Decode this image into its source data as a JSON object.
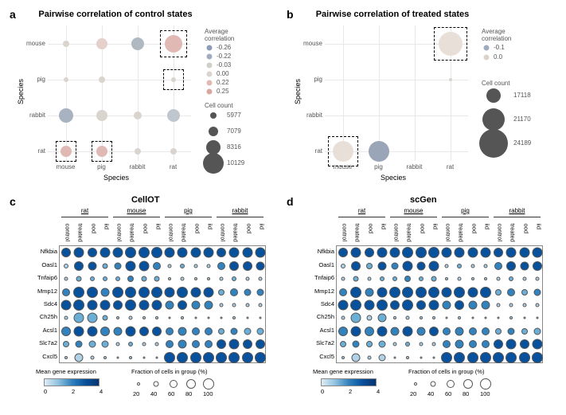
{
  "panels": {
    "a": {
      "label": "a",
      "title": "Pairwise correlation of control states"
    },
    "b": {
      "label": "b",
      "title": "Pairwise correlation of treated states"
    },
    "c": {
      "label": "c",
      "title": "CellOT"
    },
    "d": {
      "label": "d",
      "title": "scGen"
    }
  },
  "bubble_axes": {
    "xlabel": "Species",
    "ylabel": "Species",
    "ticks": [
      "mouse",
      "pig",
      "rabbit",
      "rat"
    ]
  },
  "bubble_a": {
    "colors": {
      "neg": "#8d9db6",
      "neutral": "#d9d4cd",
      "pos": "#d8a7a2",
      "pos2": "#e0b8b4"
    },
    "legend_corr_title": "Average\ncorrelation",
    "legend_corr_values": [
      "-0.26",
      "-0.22",
      "-0.03",
      "0.00",
      "0.22",
      "0.25"
    ],
    "legend_size_title": "Cell count",
    "legend_size_values": [
      "5977",
      "7079",
      "8316",
      "10129"
    ],
    "points": [
      {
        "x": 0,
        "y": 0,
        "size": 8,
        "color": "#d9d4cd"
      },
      {
        "x": 1,
        "y": 0,
        "size": 14,
        "color": "#e6d0cc"
      },
      {
        "x": 2,
        "y": 0,
        "size": 16,
        "color": "#b0b8c2"
      },
      {
        "x": 3,
        "y": 0,
        "size": 22,
        "color": "#e0b8b4",
        "box": true
      },
      {
        "x": 0,
        "y": 1,
        "size": 6,
        "color": "#d9d4cd"
      },
      {
        "x": 1,
        "y": 1,
        "size": 8,
        "color": "#d9d4cd"
      },
      {
        "x": 3,
        "y": 1,
        "size": 6,
        "color": "#d9d4cd",
        "box": true
      },
      {
        "x": 0,
        "y": 2,
        "size": 18,
        "color": "#a8b2c0"
      },
      {
        "x": 1,
        "y": 2,
        "size": 14,
        "color": "#d9d4cd"
      },
      {
        "x": 2,
        "y": 2,
        "size": 10,
        "color": "#d9d4cd"
      },
      {
        "x": 3,
        "y": 2,
        "size": 16,
        "color": "#c0c6ce"
      },
      {
        "x": 0,
        "y": 3,
        "size": 14,
        "color": "#e0b8b4",
        "box": true
      },
      {
        "x": 1,
        "y": 3,
        "size": 14,
        "color": "#e0b8b4",
        "box": true
      },
      {
        "x": 2,
        "y": 3,
        "size": 8,
        "color": "#d9d4cd"
      },
      {
        "x": 3,
        "y": 3,
        "size": 8,
        "color": "#d9d4cd"
      }
    ]
  },
  "bubble_b": {
    "legend_corr_title": "Average\ncorrelation",
    "legend_corr_values": [
      "-0.1",
      "0.0"
    ],
    "legend_size_title": "Cell count",
    "legend_size_values": [
      "17118",
      "21170",
      "24189"
    ],
    "points": [
      {
        "x": 3,
        "y": 0,
        "size": 30,
        "color": "#e8e0d8",
        "box": true
      },
      {
        "x": 3,
        "y": 1,
        "size": 4,
        "color": "#d9d4cd"
      },
      {
        "x": 0,
        "y": 3,
        "size": 26,
        "color": "#e8e0d8",
        "box": true
      },
      {
        "x": 1,
        "y": 3,
        "size": 26,
        "color": "#9aa6b8"
      }
    ]
  },
  "dotplot": {
    "genes": [
      "Nfkbia",
      "Oasl1",
      "Tnfaip6",
      "Mmp12",
      "Sdc4",
      "Ch25h",
      "Acsl1",
      "Slc7a2",
      "Cxcl5"
    ],
    "groups": [
      "rat",
      "mouse",
      "pig",
      "rabbit"
    ],
    "conditions": [
      "control",
      "treated",
      "ood",
      "iid"
    ],
    "expr_label": "Mean gene expression",
    "expr_ticks": [
      "0",
      "2",
      "4"
    ],
    "frac_label": "Fraction of cells in group (%)",
    "frac_ticks": [
      "20",
      "40",
      "60",
      "80",
      "100"
    ],
    "colorscale": [
      "#dfecf5",
      "#90c2de",
      "#3282be",
      "#08519c",
      "#083370"
    ]
  },
  "dotplot_c_data": [
    [
      [
        0.9,
        12
      ],
      [
        1.0,
        13
      ],
      [
        0.8,
        12
      ],
      [
        1.0,
        13
      ],
      [
        0.95,
        13
      ],
      [
        1.0,
        14
      ],
      [
        0.95,
        14
      ],
      [
        1.0,
        14
      ],
      [
        0.9,
        13
      ],
      [
        1.0,
        13
      ],
      [
        0.9,
        13
      ],
      [
        1.0,
        13
      ],
      [
        0.9,
        12
      ],
      [
        1.0,
        13
      ],
      [
        0.95,
        13
      ],
      [
        1.0,
        13
      ]
    ],
    [
      [
        0.3,
        6
      ],
      [
        0.9,
        12
      ],
      [
        0.8,
        11
      ],
      [
        0.4,
        7
      ],
      [
        0.6,
        9
      ],
      [
        1.0,
        13
      ],
      [
        1.0,
        13
      ],
      [
        0.7,
        10
      ],
      [
        0.3,
        5
      ],
      [
        0.4,
        6
      ],
      [
        0.3,
        5
      ],
      [
        0.3,
        5
      ],
      [
        0.7,
        10
      ],
      [
        0.95,
        12
      ],
      [
        0.9,
        12
      ],
      [
        0.8,
        11
      ]
    ],
    [
      [
        0.3,
        5
      ],
      [
        0.5,
        7
      ],
      [
        0.4,
        6
      ],
      [
        0.4,
        6
      ],
      [
        0.4,
        6
      ],
      [
        0.6,
        8
      ],
      [
        0.5,
        7
      ],
      [
        0.5,
        7
      ],
      [
        0.2,
        4
      ],
      [
        0.3,
        5
      ],
      [
        0.25,
        4
      ],
      [
        0.25,
        4
      ],
      [
        0.3,
        5
      ],
      [
        0.4,
        6
      ],
      [
        0.35,
        5
      ],
      [
        0.35,
        5
      ]
    ],
    [
      [
        0.6,
        10
      ],
      [
        0.95,
        14
      ],
      [
        0.95,
        14
      ],
      [
        0.7,
        11
      ],
      [
        0.95,
        14
      ],
      [
        1.0,
        14
      ],
      [
        1.0,
        14
      ],
      [
        1.0,
        14
      ],
      [
        0.9,
        13
      ],
      [
        1.0,
        14
      ],
      [
        0.95,
        13
      ],
      [
        0.95,
        13
      ],
      [
        0.5,
        8
      ],
      [
        0.7,
        10
      ],
      [
        0.6,
        9
      ],
      [
        0.6,
        9
      ]
    ],
    [
      [
        0.9,
        13
      ],
      [
        1.0,
        14
      ],
      [
        0.95,
        13
      ],
      [
        0.95,
        13
      ],
      [
        0.8,
        12
      ],
      [
        1.0,
        14
      ],
      [
        0.95,
        13
      ],
      [
        0.9,
        13
      ],
      [
        0.7,
        11
      ],
      [
        0.8,
        12
      ],
      [
        0.75,
        11
      ],
      [
        0.75,
        11
      ],
      [
        0.3,
        5
      ],
      [
        0.3,
        5
      ],
      [
        0.3,
        5
      ],
      [
        0.3,
        5
      ]
    ],
    [
      [
        0.3,
        5
      ],
      [
        0.5,
        13
      ],
      [
        0.5,
        13
      ],
      [
        0.4,
        7
      ],
      [
        0.2,
        4
      ],
      [
        0.3,
        5
      ],
      [
        0.25,
        4
      ],
      [
        0.25,
        4
      ],
      [
        0.15,
        3
      ],
      [
        0.2,
        4
      ],
      [
        0.15,
        3
      ],
      [
        0.15,
        3
      ],
      [
        0.15,
        3
      ],
      [
        0.2,
        4
      ],
      [
        0.15,
        3
      ],
      [
        0.15,
        3
      ]
    ],
    [
      [
        0.6,
        12
      ],
      [
        0.9,
        13
      ],
      [
        0.85,
        13
      ],
      [
        0.7,
        12
      ],
      [
        0.7,
        11
      ],
      [
        0.9,
        13
      ],
      [
        0.85,
        12
      ],
      [
        0.8,
        12
      ],
      [
        0.6,
        10
      ],
      [
        0.7,
        11
      ],
      [
        0.65,
        10
      ],
      [
        0.65,
        10
      ],
      [
        0.5,
        8
      ],
      [
        0.6,
        9
      ],
      [
        0.55,
        9
      ],
      [
        0.55,
        9
      ]
    ],
    [
      [
        0.5,
        8
      ],
      [
        0.6,
        9
      ],
      [
        0.55,
        9
      ],
      [
        0.55,
        9
      ],
      [
        0.3,
        5
      ],
      [
        0.4,
        6
      ],
      [
        0.35,
        5
      ],
      [
        0.35,
        5
      ],
      [
        0.6,
        10
      ],
      [
        0.7,
        11
      ],
      [
        0.65,
        10
      ],
      [
        0.65,
        10
      ],
      [
        0.8,
        12
      ],
      [
        0.9,
        13
      ],
      [
        0.85,
        12
      ],
      [
        0.85,
        12
      ]
    ],
    [
      [
        0.2,
        4
      ],
      [
        0.3,
        11
      ],
      [
        0.3,
        5
      ],
      [
        0.25,
        4
      ],
      [
        0.15,
        3
      ],
      [
        0.2,
        4
      ],
      [
        0.15,
        3
      ],
      [
        0.15,
        3
      ],
      [
        0.9,
        14
      ],
      [
        1.0,
        14
      ],
      [
        0.95,
        14
      ],
      [
        0.95,
        14
      ],
      [
        0.9,
        14
      ],
      [
        1.0,
        14
      ],
      [
        0.95,
        14
      ],
      [
        0.95,
        14
      ]
    ]
  ],
  "dotplot_d_data": [
    [
      [
        0.9,
        12
      ],
      [
        1.0,
        13
      ],
      [
        0.9,
        12
      ],
      [
        1.0,
        13
      ],
      [
        0.95,
        13
      ],
      [
        1.0,
        14
      ],
      [
        0.95,
        14
      ],
      [
        1.0,
        14
      ],
      [
        0.9,
        13
      ],
      [
        1.0,
        13
      ],
      [
        0.9,
        13
      ],
      [
        1.0,
        13
      ],
      [
        0.9,
        12
      ],
      [
        1.0,
        13
      ],
      [
        0.95,
        13
      ],
      [
        1.0,
        13
      ]
    ],
    [
      [
        0.3,
        6
      ],
      [
        0.9,
        12
      ],
      [
        0.5,
        8
      ],
      [
        0.8,
        11
      ],
      [
        0.6,
        9
      ],
      [
        1.0,
        13
      ],
      [
        0.8,
        11
      ],
      [
        0.95,
        13
      ],
      [
        0.3,
        5
      ],
      [
        0.4,
        6
      ],
      [
        0.3,
        5
      ],
      [
        0.35,
        5
      ],
      [
        0.7,
        10
      ],
      [
        0.95,
        12
      ],
      [
        0.8,
        11
      ],
      [
        0.9,
        12
      ]
    ],
    [
      [
        0.3,
        5
      ],
      [
        0.5,
        7
      ],
      [
        0.35,
        5
      ],
      [
        0.45,
        6
      ],
      [
        0.4,
        6
      ],
      [
        0.6,
        8
      ],
      [
        0.45,
        6
      ],
      [
        0.55,
        7
      ],
      [
        0.2,
        4
      ],
      [
        0.3,
        5
      ],
      [
        0.22,
        4
      ],
      [
        0.28,
        4
      ],
      [
        0.3,
        5
      ],
      [
        0.4,
        6
      ],
      [
        0.32,
        5
      ],
      [
        0.38,
        5
      ]
    ],
    [
      [
        0.6,
        10
      ],
      [
        0.95,
        14
      ],
      [
        0.7,
        11
      ],
      [
        0.9,
        13
      ],
      [
        0.95,
        14
      ],
      [
        1.0,
        14
      ],
      [
        0.98,
        14
      ],
      [
        1.0,
        14
      ],
      [
        0.9,
        13
      ],
      [
        1.0,
        14
      ],
      [
        0.92,
        13
      ],
      [
        0.98,
        14
      ],
      [
        0.5,
        8
      ],
      [
        0.7,
        10
      ],
      [
        0.55,
        8
      ],
      [
        0.65,
        9
      ]
    ],
    [
      [
        0.9,
        13
      ],
      [
        1.0,
        14
      ],
      [
        0.92,
        13
      ],
      [
        0.98,
        14
      ],
      [
        0.8,
        12
      ],
      [
        1.0,
        14
      ],
      [
        0.85,
        12
      ],
      [
        0.95,
        13
      ],
      [
        0.7,
        11
      ],
      [
        0.8,
        12
      ],
      [
        0.72,
        11
      ],
      [
        0.78,
        11
      ],
      [
        0.3,
        5
      ],
      [
        0.3,
        5
      ],
      [
        0.3,
        5
      ],
      [
        0.3,
        5
      ]
    ],
    [
      [
        0.3,
        5
      ],
      [
        0.5,
        13
      ],
      [
        0.35,
        7
      ],
      [
        0.45,
        11
      ],
      [
        0.2,
        4
      ],
      [
        0.3,
        5
      ],
      [
        0.22,
        4
      ],
      [
        0.28,
        4
      ],
      [
        0.15,
        3
      ],
      [
        0.2,
        4
      ],
      [
        0.16,
        3
      ],
      [
        0.19,
        3
      ],
      [
        0.15,
        3
      ],
      [
        0.2,
        4
      ],
      [
        0.16,
        3
      ],
      [
        0.19,
        3
      ]
    ],
    [
      [
        0.6,
        12
      ],
      [
        0.9,
        13
      ],
      [
        0.65,
        12
      ],
      [
        0.85,
        13
      ],
      [
        0.7,
        11
      ],
      [
        0.9,
        13
      ],
      [
        0.75,
        11
      ],
      [
        0.85,
        12
      ],
      [
        0.6,
        10
      ],
      [
        0.7,
        11
      ],
      [
        0.62,
        10
      ],
      [
        0.68,
        10
      ],
      [
        0.5,
        8
      ],
      [
        0.6,
        9
      ],
      [
        0.52,
        8
      ],
      [
        0.58,
        9
      ]
    ],
    [
      [
        0.5,
        8
      ],
      [
        0.6,
        9
      ],
      [
        0.52,
        8
      ],
      [
        0.58,
        9
      ],
      [
        0.3,
        5
      ],
      [
        0.4,
        6
      ],
      [
        0.32,
        5
      ],
      [
        0.38,
        5
      ],
      [
        0.6,
        10
      ],
      [
        0.7,
        11
      ],
      [
        0.62,
        10
      ],
      [
        0.68,
        10
      ],
      [
        0.8,
        12
      ],
      [
        0.9,
        13
      ],
      [
        0.82,
        12
      ],
      [
        0.88,
        13
      ]
    ],
    [
      [
        0.2,
        4
      ],
      [
        0.3,
        11
      ],
      [
        0.22,
        5
      ],
      [
        0.28,
        9
      ],
      [
        0.15,
        3
      ],
      [
        0.2,
        4
      ],
      [
        0.16,
        3
      ],
      [
        0.19,
        3
      ],
      [
        0.9,
        14
      ],
      [
        1.0,
        14
      ],
      [
        0.92,
        14
      ],
      [
        0.98,
        14
      ],
      [
        0.9,
        14
      ],
      [
        1.0,
        14
      ],
      [
        0.92,
        14
      ],
      [
        0.98,
        14
      ]
    ]
  ]
}
